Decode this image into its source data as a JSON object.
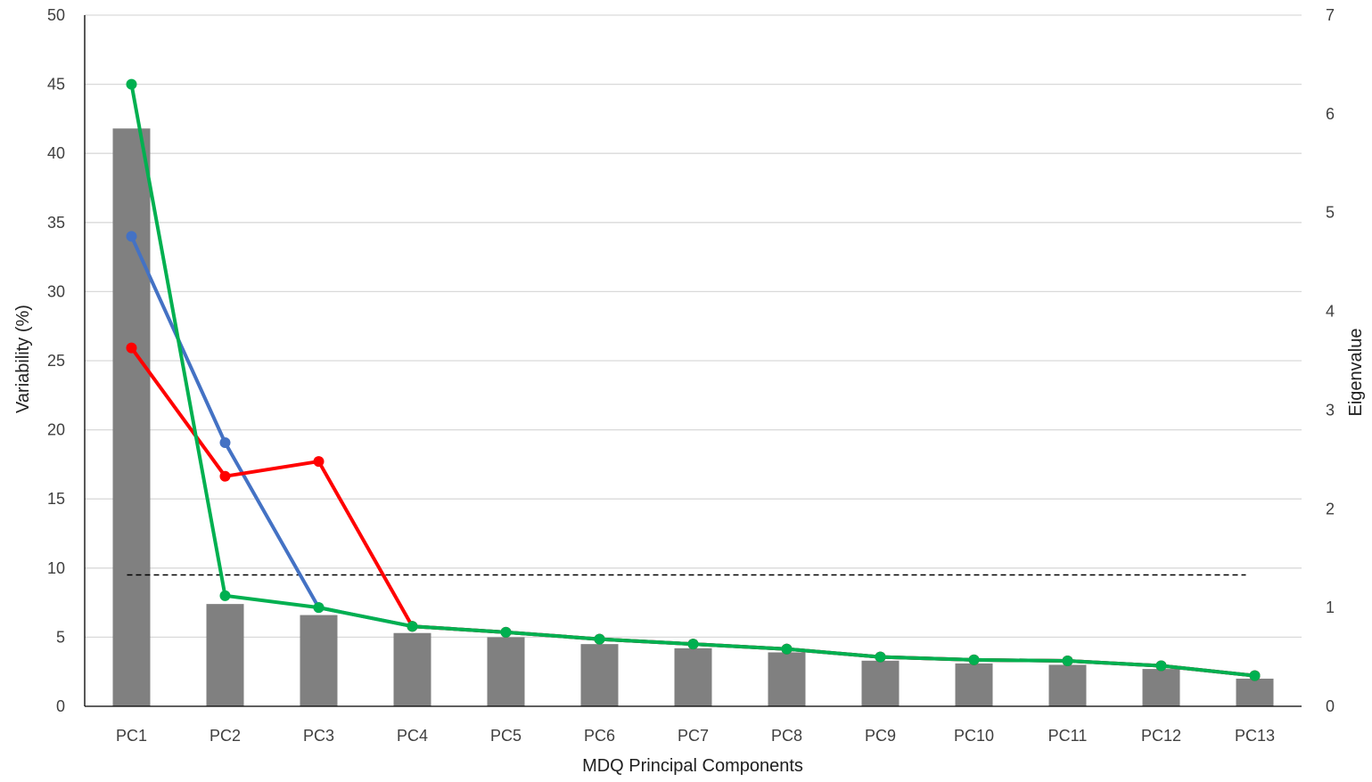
{
  "chart_data": {
    "type": "bar",
    "xlabel": "MDQ Principal Components",
    "ylabel": "Variability (%)",
    "y2label": "Eigenvalue",
    "ylim": [
      0,
      50
    ],
    "y2lim": [
      0,
      7
    ],
    "yticks": [
      "0",
      "5",
      "10",
      "15",
      "20",
      "25",
      "30",
      "35",
      "40",
      "45",
      "50"
    ],
    "y2ticks": [
      "0",
      "1",
      "2",
      "3",
      "4",
      "5",
      "6",
      "7"
    ],
    "grid": true,
    "categories": [
      "PC1",
      "PC2",
      "PC3",
      "PC4",
      "PC5",
      "PC6",
      "PC7",
      "PC8",
      "PC9",
      "PC10",
      "PC11",
      "PC12",
      "PC13"
    ],
    "bars": {
      "axis": "left",
      "color": "#808080",
      "values": [
        41.8,
        7.4,
        6.6,
        5.3,
        5.0,
        4.5,
        4.2,
        3.9,
        3.3,
        3.1,
        3.0,
        2.7,
        2.0
      ]
    },
    "lines": [
      {
        "axis": "right",
        "color": "#4472c4",
        "values": [
          4.76,
          2.67,
          1.0,
          0.81,
          0.75,
          0.68,
          0.63,
          0.58,
          0.5,
          0.47,
          0.46,
          0.41,
          0.31
        ]
      },
      {
        "axis": "right",
        "color": "#ff0000",
        "values": [
          3.63,
          2.33,
          2.48,
          0.81,
          0.75,
          0.68,
          0.63,
          0.58,
          0.5,
          0.47,
          0.46,
          0.41,
          0.31
        ]
      },
      {
        "axis": "right",
        "color": "#00b050",
        "values": [
          6.3,
          1.12,
          1.0,
          0.81,
          0.75,
          0.68,
          0.63,
          0.58,
          0.5,
          0.47,
          0.46,
          0.41,
          0.31
        ]
      }
    ],
    "reference_line": {
      "axis": "left",
      "value": 9.5,
      "style": "dashed",
      "color": "#000000"
    }
  }
}
